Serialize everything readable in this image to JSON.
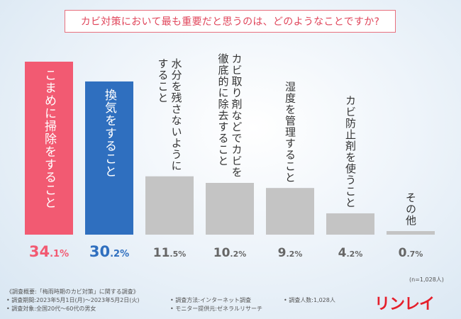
{
  "title": "カビ対策において最も重要だと思うのは、どのようなことですか?",
  "chart_data": {
    "type": "bar",
    "title": "カビ対策において最も重要だと思うのは、どのようなことですか?",
    "categories": [
      [
        "こまめに掃除をすること"
      ],
      [
        "換気をすること"
      ],
      [
        "水分を残さないように",
        "すること"
      ],
      [
        "カビ取り剤などでカビを",
        "徹底的に除去すること"
      ],
      [
        "湿度を管理すること"
      ],
      [
        "カビ防止剤を使うこと"
      ],
      [
        "その他"
      ]
    ],
    "values": [
      34.1,
      30.2,
      11.5,
      10.2,
      9.2,
      4.2,
      0.7
    ],
    "value_labels": [
      {
        "int": "34",
        "dec": ".1%"
      },
      {
        "int": "30",
        "dec": ".2%"
      },
      {
        "int": "11",
        "dec": ".5%"
      },
      {
        "int": "10",
        "dec": ".2%"
      },
      {
        "int": "9",
        "dec": ".2%"
      },
      {
        "int": "4",
        "dec": ".2%"
      },
      {
        "int": "0",
        "dec": ".7%"
      }
    ],
    "colors": [
      "#f25a72",
      "#2f6fbf",
      "#c4c4c4",
      "#c4c4c4",
      "#c4c4c4",
      "#c4c4c4",
      "#c4c4c4"
    ],
    "label_colors": [
      "#ffffff",
      "#ffffff",
      "#333333",
      "#333333",
      "#333333",
      "#333333",
      "#333333"
    ],
    "value_colors": [
      "#f25a72",
      "#2f6fbf",
      "#666666",
      "#666666",
      "#666666",
      "#666666",
      "#666666"
    ],
    "ylim": [
      0,
      34.1
    ],
    "xlabel": "",
    "ylabel": ""
  },
  "note": "(n=1,028人)",
  "footer": {
    "survey_summary": "《調査概要:「梅雨時期のカビ対策」に関する調査》",
    "survey_period": "• 調査期間:2023年5月1日(月)〜2023年5月2日(火)",
    "survey_target": "• 調査対象:全国20代〜60代の男女",
    "survey_method": "• 調査方法:インターネット調査",
    "monitor_provider": "• モニター提供元:ゼネラルリサーチ",
    "respondents": "• 調査人数:1,028人"
  },
  "brand": "リンレイ"
}
